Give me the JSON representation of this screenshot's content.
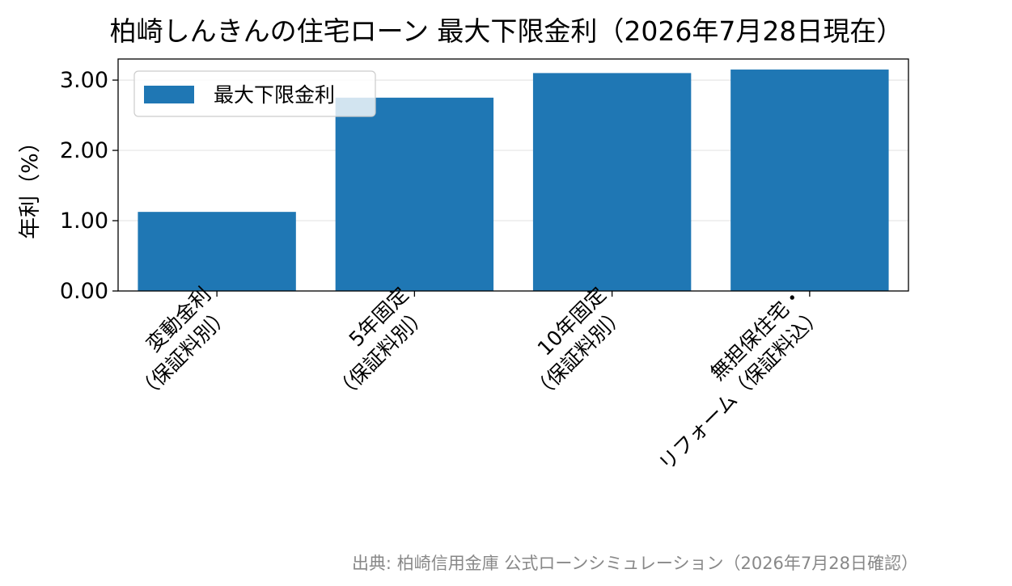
{
  "chart_data": {
    "type": "bar",
    "title": "柏崎しんきんの住宅ローン 最大下限金利（2026年7月28日現在）",
    "ylabel": "年利（%）",
    "xlabel": "",
    "categories": [
      [
        "変動金利",
        "（保証料別）"
      ],
      [
        "5年固定",
        "（保証料別）"
      ],
      [
        "10年固定",
        "（保証料別）"
      ],
      [
        "無担保住宅・",
        "リフォーム（保証料込）"
      ]
    ],
    "series": [
      {
        "name": "最大下限金利",
        "values": [
          1.125,
          2.75,
          3.1,
          3.15
        ]
      }
    ],
    "ylim": [
      0,
      3.3
    ],
    "yticks": [
      "0.00",
      "1.00",
      "2.00",
      "3.00"
    ],
    "ytick_values": [
      0,
      1,
      2,
      3
    ],
    "grid": true,
    "legend_position": "top-left",
    "bar_color": "#1f77b4",
    "source": "出典: 柏崎信用金庫 公式ローンシミュレーション（2026年7月28日確認）"
  }
}
